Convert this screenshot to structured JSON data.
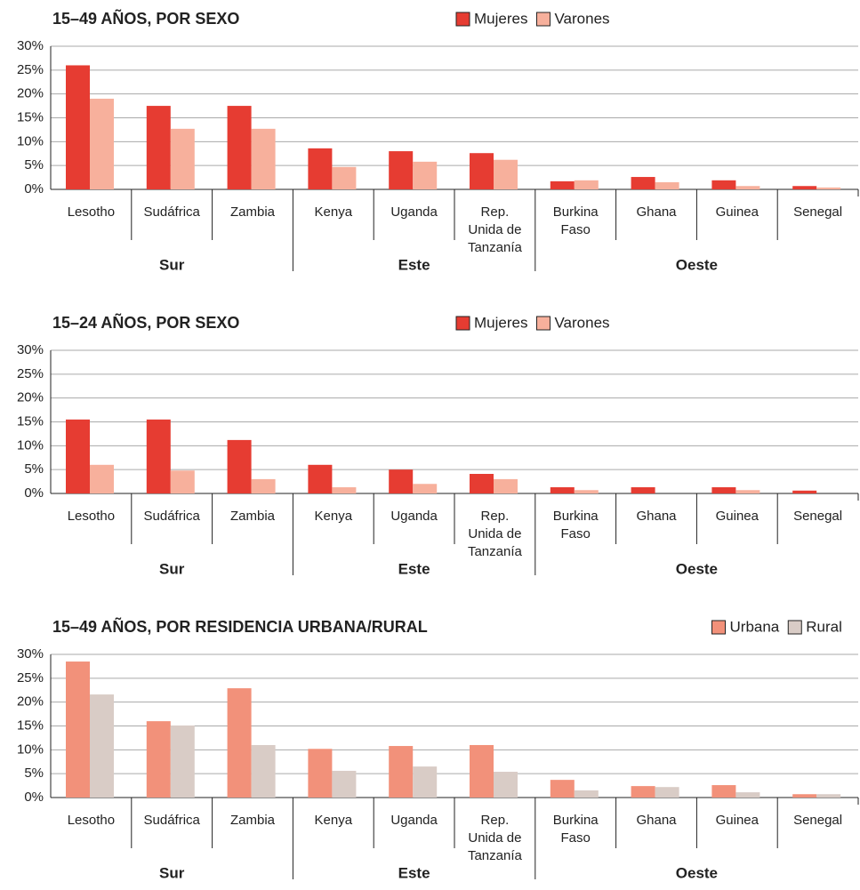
{
  "chart_data": [
    {
      "type": "bar",
      "title": "15–49 AÑOS, POR SEXO",
      "categories": [
        "Lesotho",
        "Sudáfrica",
        "Zambia",
        "Kenya",
        "Uganda",
        "Rep.\nUnida de\nTanzanía",
        "Burkina\nFaso",
        "Ghana",
        "Guinea",
        "Senegal"
      ],
      "groups": [
        {
          "name": "Sur",
          "size": 3
        },
        {
          "name": "Este",
          "size": 3
        },
        {
          "name": "Oeste",
          "size": 4
        }
      ],
      "series": [
        {
          "name": "Mujeres",
          "color": "#e63c32",
          "values": [
            26,
            17.5,
            17.5,
            8.6,
            8,
            7.6,
            1.7,
            2.6,
            1.9,
            0.7
          ]
        },
        {
          "name": "Varones",
          "color": "#f7b09c",
          "values": [
            19,
            12.7,
            12.7,
            4.7,
            5.8,
            6.2,
            1.9,
            1.5,
            0.7,
            0.4
          ]
        }
      ],
      "ylim": [
        0,
        30
      ],
      "yticks": [
        {
          "value": 0,
          "label": "0%"
        },
        {
          "value": 5,
          "label": "5%"
        },
        {
          "value": 10,
          "label": "10%"
        },
        {
          "value": 15,
          "label": "15%"
        },
        {
          "value": 20,
          "label": "20%"
        },
        {
          "value": 25,
          "label": "25%"
        },
        {
          "value": 30,
          "label": "30%"
        }
      ],
      "grid": true,
      "legend": "top-center"
    },
    {
      "type": "bar",
      "title": "15–24 AÑOS, POR SEXO",
      "categories": [
        "Lesotho",
        "Sudáfrica",
        "Zambia",
        "Kenya",
        "Uganda",
        "Rep.\nUnida de\nTanzanía",
        "Burkina\nFaso",
        "Ghana",
        "Guinea",
        "Senegal"
      ],
      "groups": [
        {
          "name": "Sur",
          "size": 3
        },
        {
          "name": "Este",
          "size": 3
        },
        {
          "name": "Oeste",
          "size": 4
        }
      ],
      "series": [
        {
          "name": "Mujeres",
          "color": "#e63c32",
          "values": [
            15.5,
            15.5,
            11.2,
            6,
            5,
            4.1,
            1.3,
            1.3,
            1.3,
            0.6
          ]
        },
        {
          "name": "Varones",
          "color": "#f7b09c",
          "values": [
            6,
            4.8,
            3,
            1.3,
            2,
            3,
            0.7,
            0,
            0.7,
            0
          ]
        }
      ],
      "ylim": [
        0,
        30
      ],
      "yticks": [
        {
          "value": 0,
          "label": "0%"
        },
        {
          "value": 5,
          "label": "5%"
        },
        {
          "value": 10,
          "label": "10%"
        },
        {
          "value": 15,
          "label": "15%"
        },
        {
          "value": 20,
          "label": "20%"
        },
        {
          "value": 25,
          "label": "25%"
        },
        {
          "value": 30,
          "label": "30%"
        }
      ],
      "grid": true,
      "legend": "top-center"
    },
    {
      "type": "bar",
      "title": "15–49 AÑOS, POR RESIDENCIA URBANA/RURAL",
      "categories": [
        "Lesotho",
        "Sudáfrica",
        "Zambia",
        "Kenya",
        "Uganda",
        "Rep.\nUnida de\nTanzanía",
        "Burkina\nFaso",
        "Ghana",
        "Guinea",
        "Senegal"
      ],
      "groups": [
        {
          "name": "Sur",
          "size": 3
        },
        {
          "name": "Este",
          "size": 3
        },
        {
          "name": "Oeste",
          "size": 4
        }
      ],
      "series": [
        {
          "name": "Urbana",
          "color": "#f2917a",
          "values": [
            28.5,
            16,
            22.9,
            10.2,
            10.8,
            11,
            3.7,
            2.4,
            2.6,
            0.7
          ]
        },
        {
          "name": "Rural",
          "color": "#d9ccc6",
          "values": [
            21.6,
            15.1,
            11,
            5.6,
            6.5,
            5.4,
            1.5,
            2.2,
            1.1,
            0.7
          ]
        }
      ],
      "ylim": [
        0,
        30
      ],
      "yticks": [
        {
          "value": 0,
          "label": "0%"
        },
        {
          "value": 5,
          "label": "5%"
        },
        {
          "value": 10,
          "label": "10%"
        },
        {
          "value": 15,
          "label": "15%"
        },
        {
          "value": 20,
          "label": "20%"
        },
        {
          "value": 25,
          "label": "25%"
        },
        {
          "value": 30,
          "label": "30%"
        }
      ],
      "grid": true,
      "legend": "top-right"
    }
  ]
}
